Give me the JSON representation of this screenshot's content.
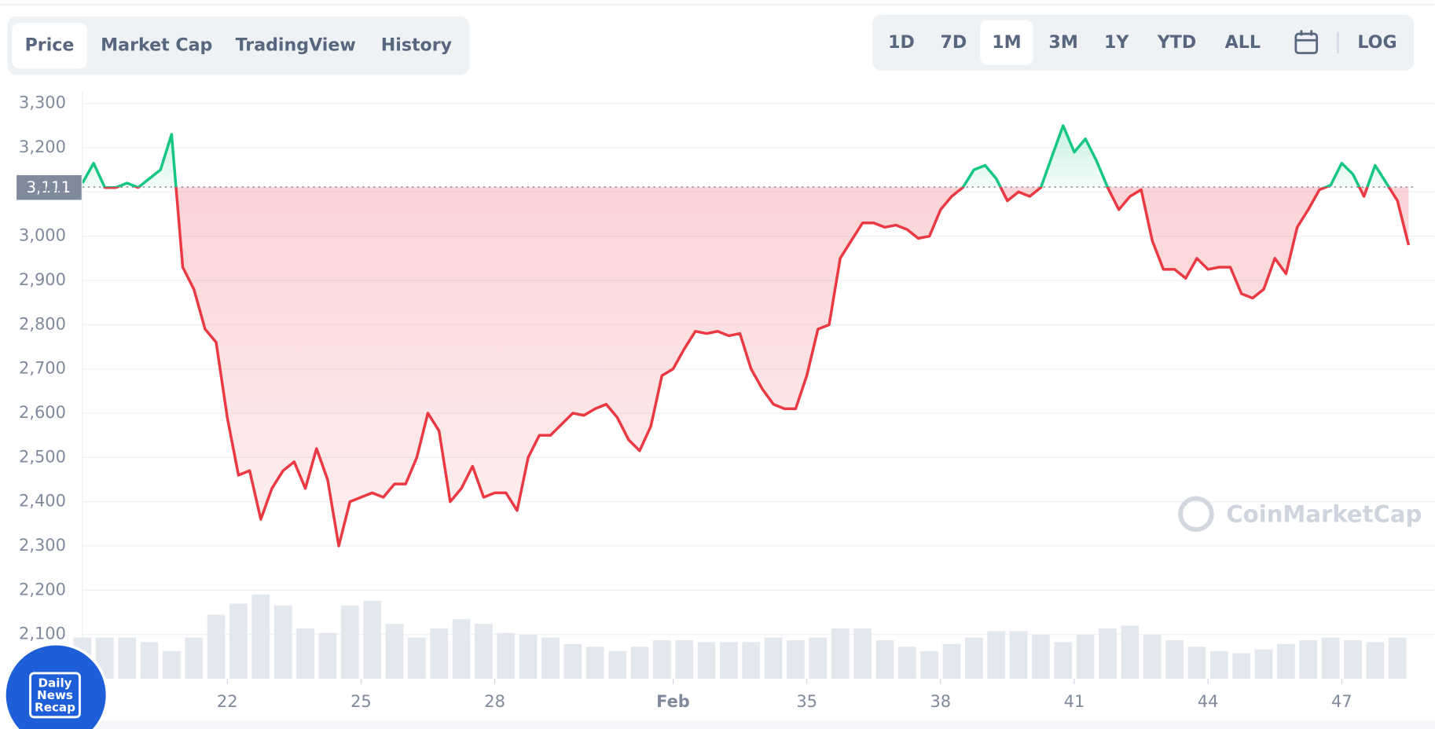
{
  "tabs": [
    "Price",
    "Market Cap",
    "TradingView",
    "History"
  ],
  "active_tab": 0,
  "ranges": [
    "1D",
    "7D",
    "1M",
    "3M",
    "1Y",
    "YTD",
    "ALL"
  ],
  "active_range": 2,
  "log_button": "LOG",
  "badge": [
    "Daily",
    "News",
    "Recap"
  ],
  "chart_data": {
    "type": "line",
    "watermark": "CoinMarketCap",
    "up_color": "#16c784",
    "down_color": "#ea3943",
    "grid": true,
    "reference": {
      "value": 3111,
      "label": "3,111"
    },
    "xlim": [
      18.75,
      48.7
    ],
    "ylim": [
      2000,
      3327
    ],
    "xticks": [
      22,
      25,
      28,
      {
        "value": 32,
        "label": "Feb"
      },
      35,
      38,
      41,
      44,
      47
    ],
    "yticks": [
      {
        "value": 2100,
        "label": "2,100"
      },
      {
        "value": 2200,
        "label": "2,200"
      },
      {
        "value": 2300,
        "label": "2,300"
      },
      {
        "value": 2400,
        "label": "2,400"
      },
      {
        "value": 2500,
        "label": "2,500"
      },
      {
        "value": 2600,
        "label": "2,600"
      },
      {
        "value": 2700,
        "label": "2,700"
      },
      {
        "value": 2800,
        "label": "2,800"
      },
      {
        "value": 2900,
        "label": "2,900"
      },
      {
        "value": 3000,
        "label": "3,000"
      },
      {
        "value": 3100,
        "label": "3,100"
      },
      {
        "value": 3200,
        "label": "3,200"
      },
      {
        "value": 3300,
        "label": "3,300"
      }
    ],
    "x": [
      18.75,
      19,
      19.25,
      19.5,
      19.75,
      20,
      20.25,
      20.5,
      20.75,
      21,
      21.25,
      21.5,
      21.75,
      22,
      22.25,
      22.5,
      22.75,
      23,
      23.25,
      23.5,
      23.75,
      24,
      24.25,
      24.5,
      24.75,
      25,
      25.25,
      25.5,
      25.75,
      26,
      26.25,
      26.5,
      26.75,
      27,
      27.25,
      27.5,
      27.75,
      28,
      28.25,
      28.5,
      28.75,
      29,
      29.25,
      29.5,
      29.75,
      30,
      30.25,
      30.5,
      30.75,
      31,
      31.25,
      31.5,
      31.75,
      32,
      32.25,
      32.5,
      32.75,
      33,
      33.25,
      33.5,
      33.75,
      34,
      34.25,
      34.5,
      34.75,
      35,
      35.25,
      35.5,
      35.75,
      36,
      36.25,
      36.5,
      36.75,
      37,
      37.25,
      37.5,
      37.75,
      38,
      38.25,
      38.5,
      38.75,
      39,
      39.25,
      39.5,
      39.75,
      40,
      40.25,
      40.5,
      40.75,
      41,
      41.25,
      41.5,
      41.75,
      42,
      42.25,
      42.5,
      42.75,
      43,
      43.25,
      43.5,
      43.75,
      44,
      44.25,
      44.5,
      44.75,
      45,
      45.25,
      45.5,
      45.75,
      46,
      46.25,
      46.5,
      46.75,
      47,
      47.25,
      47.5,
      47.75,
      48,
      48.25,
      48.5
    ],
    "values": [
      3120,
      3165,
      3110,
      3110,
      3120,
      3110,
      3130,
      3150,
      3230,
      2930,
      2880,
      2790,
      2760,
      2590,
      2460,
      2470,
      2360,
      2430,
      2470,
      2490,
      2430,
      2520,
      2450,
      2300,
      2400,
      2410,
      2420,
      2410,
      2440,
      2440,
      2500,
      2600,
      2560,
      2400,
      2430,
      2480,
      2410,
      2420,
      2420,
      2380,
      2500,
      2550,
      2550,
      2575,
      2600,
      2595,
      2610,
      2620,
      2590,
      2540,
      2515,
      2570,
      2685,
      2700,
      2745,
      2785,
      2780,
      2785,
      2775,
      2780,
      2700,
      2655,
      2620,
      2610,
      2610,
      2685,
      2790,
      2800,
      2950,
      2990,
      3030,
      3030,
      3020,
      3025,
      3015,
      2995,
      3000,
      3060,
      3090,
      3110,
      3150,
      3160,
      3130,
      3080,
      3100,
      3090,
      3110,
      3180,
      3250,
      3190,
      3220,
      3170,
      3110,
      3060,
      3090,
      3105,
      2990,
      2925,
      2925,
      2905,
      2950,
      2925,
      2930,
      2930,
      2870,
      2860,
      2880,
      2950,
      2915,
      3020,
      3060,
      3105,
      3115,
      3165,
      3140,
      3090,
      3160,
      3120,
      3080,
      2980
    ],
    "volume": {
      "x": [
        18.75,
        19.25,
        19.75,
        20.25,
        20.75,
        21.25,
        21.75,
        22.25,
        22.75,
        23.25,
        23.75,
        24.25,
        24.75,
        25.25,
        25.75,
        26.25,
        26.75,
        27.25,
        27.75,
        28.25,
        28.75,
        29.25,
        29.75,
        30.25,
        30.75,
        31.25,
        31.75,
        32.25,
        32.75,
        33.25,
        33.75,
        34.25,
        34.75,
        35.25,
        35.75,
        36.25,
        36.75,
        37.25,
        37.75,
        38.25,
        38.75,
        39.25,
        39.75,
        40.25,
        40.75,
        41.25,
        41.75,
        42.25,
        42.75,
        43.25,
        43.75,
        44.25,
        44.75,
        45.25,
        45.75,
        46.25,
        46.75,
        47.25,
        47.75,
        48.25
      ],
      "values": [
        45,
        45,
        45,
        40,
        30,
        45,
        70,
        82,
        92,
        80,
        55,
        50,
        80,
        85,
        60,
        45,
        55,
        65,
        60,
        50,
        48,
        45,
        38,
        35,
        30,
        35,
        42,
        42,
        40,
        40,
        40,
        45,
        42,
        45,
        55,
        55,
        42,
        35,
        30,
        38,
        45,
        52,
        52,
        48,
        40,
        48,
        55,
        58,
        48,
        42,
        35,
        30,
        28,
        32,
        38,
        42,
        45,
        42,
        40,
        45
      ]
    }
  }
}
